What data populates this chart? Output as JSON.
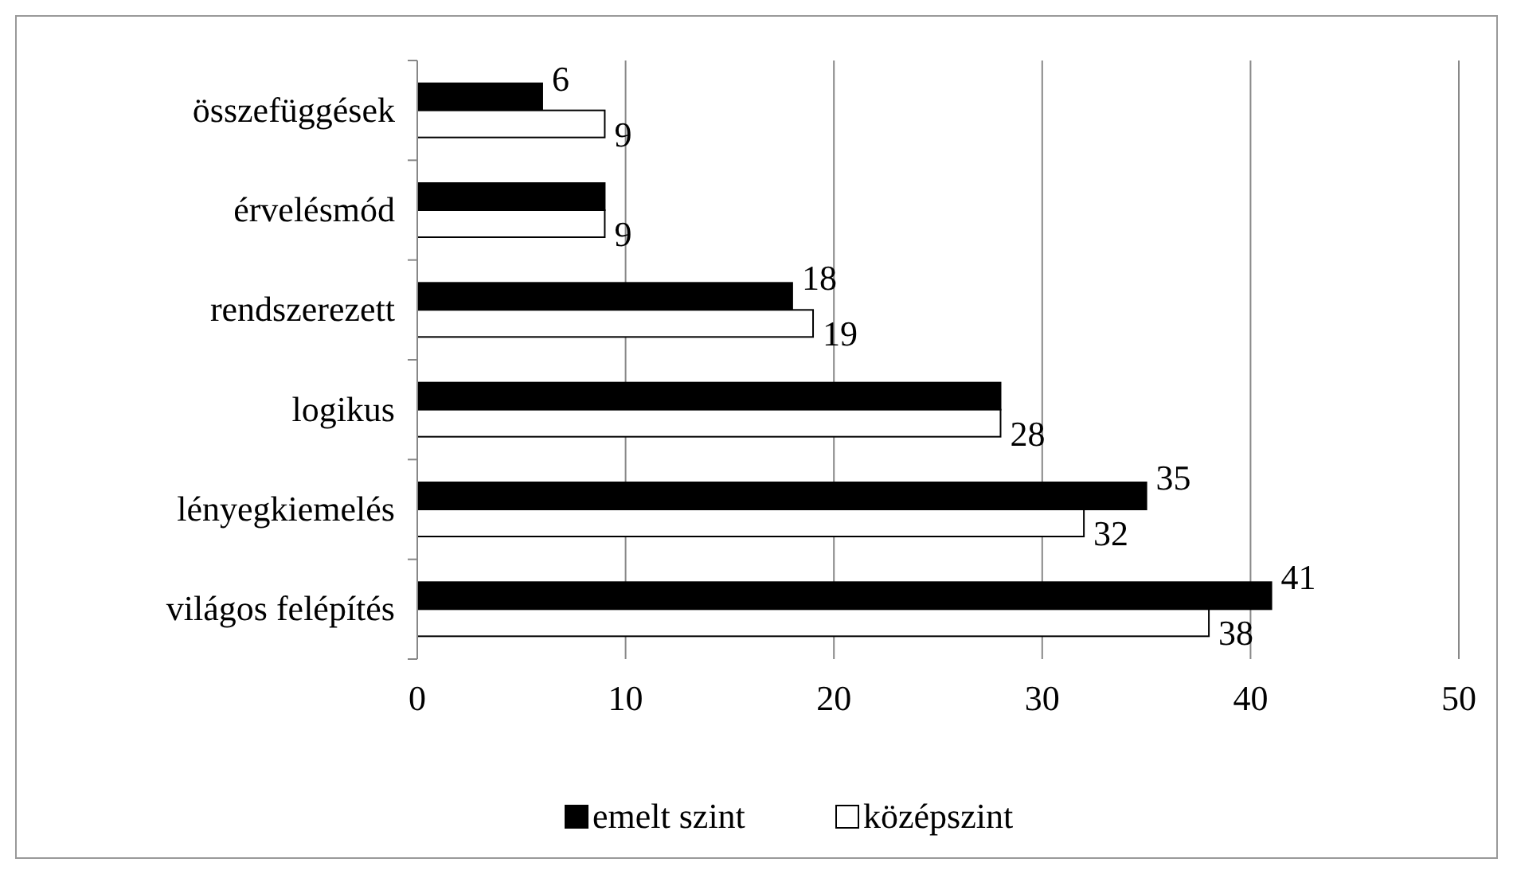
{
  "chart_data": {
    "type": "bar",
    "orientation": "horizontal",
    "categories": [
      "összefüggések",
      "érvelésmód",
      "rendszerezett",
      "logikus",
      "lényegkiemelés",
      "világos felépítés"
    ],
    "series": [
      {
        "name": "emelt szint",
        "color": "#000000",
        "values": [
          6,
          9,
          18,
          28,
          35,
          41
        ],
        "value_labels": [
          "6",
          null,
          "18",
          null,
          "35",
          "41"
        ]
      },
      {
        "name": "középszint",
        "color": "#ffffff",
        "values": [
          9,
          9,
          19,
          28,
          32,
          38
        ],
        "value_labels": [
          "9",
          "9",
          "19",
          "28",
          "32",
          "38"
        ]
      }
    ],
    "xlim": [
      0,
      50
    ],
    "xticks": [
      0,
      10,
      20,
      30,
      40,
      50
    ],
    "grid": "x",
    "legend": "bottom"
  }
}
